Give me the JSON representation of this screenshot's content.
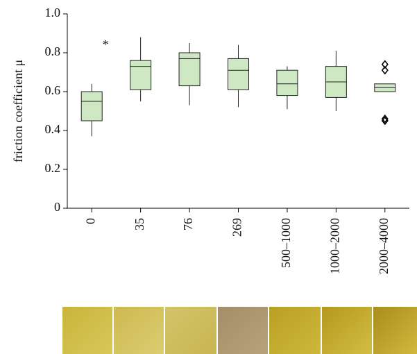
{
  "chart_data": {
    "type": "box",
    "ylabel": "friction coefficient μ",
    "annotation": "*",
    "categories": [
      "0",
      "35",
      "76",
      "269",
      "500–1000",
      "1000–2000",
      "2000–4000"
    ],
    "boxes": [
      {
        "whislo": 0.37,
        "q1": 0.45,
        "med": 0.55,
        "q3": 0.6,
        "whishi": 0.64,
        "fliers": []
      },
      {
        "whislo": 0.55,
        "q1": 0.61,
        "med": 0.73,
        "q3": 0.76,
        "whishi": 0.88,
        "fliers": []
      },
      {
        "whislo": 0.53,
        "q1": 0.63,
        "med": 0.77,
        "q3": 0.8,
        "whishi": 0.85,
        "fliers": []
      },
      {
        "whislo": 0.52,
        "q1": 0.61,
        "med": 0.71,
        "q3": 0.77,
        "whishi": 0.84,
        "fliers": []
      },
      {
        "whislo": 0.51,
        "q1": 0.58,
        "med": 0.64,
        "q3": 0.71,
        "whishi": 0.73,
        "fliers": []
      },
      {
        "whislo": 0.5,
        "q1": 0.57,
        "med": 0.65,
        "q3": 0.73,
        "whishi": 0.81,
        "fliers": []
      },
      {
        "whislo": 0.6,
        "q1": 0.6,
        "med": 0.62,
        "q3": 0.64,
        "whishi": 0.64,
        "fliers": [
          0.74,
          0.71,
          0.46,
          0.45
        ]
      }
    ],
    "color": "#cfe8c4",
    "ylim": [
      0,
      1
    ],
    "yticks": [
      0,
      0.2,
      0.4,
      0.6,
      0.8,
      {
        "value": 1,
        "label": "1.0"
      }
    ]
  }
}
